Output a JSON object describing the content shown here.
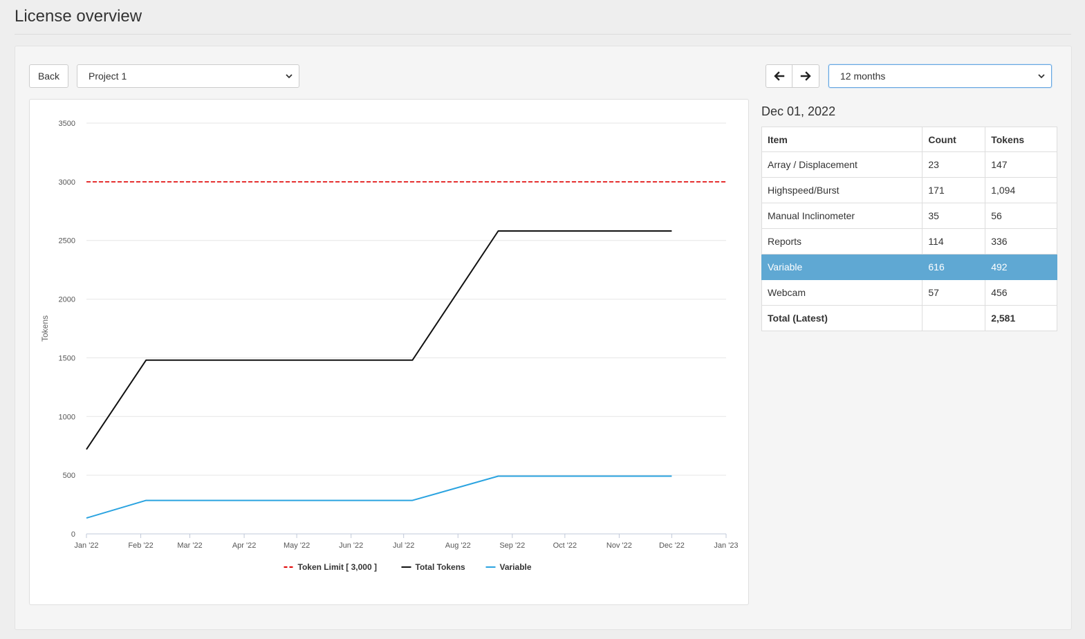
{
  "page": {
    "title": "License overview"
  },
  "toolbar": {
    "back_label": "Back",
    "project_select": {
      "value": "Project 1"
    },
    "prev_icon": "arrow-left-icon",
    "next_icon": "arrow-right-icon",
    "range_select": {
      "value": "12 months"
    }
  },
  "detail": {
    "date": "Dec 01, 2022",
    "columns": [
      "Item",
      "Count",
      "Tokens"
    ],
    "rows": [
      {
        "item": "Array / Displacement",
        "count": "23",
        "tokens": "147"
      },
      {
        "item": "Highspeed/Burst",
        "count": "171",
        "tokens": "1,094"
      },
      {
        "item": "Manual Inclinometer",
        "count": "35",
        "tokens": "56"
      },
      {
        "item": "Reports",
        "count": "114",
        "tokens": "336"
      },
      {
        "item": "Variable",
        "count": "616",
        "tokens": "492",
        "selected": true
      },
      {
        "item": "Webcam",
        "count": "57",
        "tokens": "456"
      }
    ],
    "total": {
      "label": "Total (Latest)",
      "count": "",
      "tokens": "2,581"
    },
    "selected_color": "#5fa8d3"
  },
  "chart_data": {
    "type": "line",
    "ylabel": "Tokens",
    "xlabel": "",
    "ylim": [
      0,
      3500
    ],
    "yticks": [
      0,
      500,
      1000,
      1500,
      2000,
      2500,
      3000,
      3500
    ],
    "xlim": [
      "2022-01-01",
      "2023-01-01"
    ],
    "xticks": [
      "Jan '22",
      "Feb '22",
      "Mar '22",
      "Apr '22",
      "May '22",
      "Jun '22",
      "Jul '22",
      "Aug '22",
      "Sep '22",
      "Oct '22",
      "Nov '22",
      "Dec '22",
      "Jan '23"
    ],
    "xtick_dates": [
      "2022-01-01",
      "2022-02-01",
      "2022-03-01",
      "2022-04-01",
      "2022-05-01",
      "2022-06-01",
      "2022-07-01",
      "2022-08-01",
      "2022-09-01",
      "2022-10-01",
      "2022-11-01",
      "2022-12-01",
      "2023-01-01"
    ],
    "grid": true,
    "legend": "bottom-center",
    "series": [
      {
        "name": "Token Limit [ 3,000 ]",
        "color": "#e00000",
        "dash": true,
        "points": [
          [
            "2022-01-01",
            3000
          ],
          [
            "2023-01-01",
            3000
          ]
        ]
      },
      {
        "name": "Total Tokens",
        "color": "#111111",
        "dash": false,
        "points": [
          [
            "2022-01-01",
            720
          ],
          [
            "2022-02-04",
            1480
          ],
          [
            "2022-07-06",
            1480
          ],
          [
            "2022-08-24",
            2581
          ],
          [
            "2022-12-01",
            2581
          ]
        ]
      },
      {
        "name": "Variable",
        "color": "#2aa3e0",
        "dash": false,
        "points": [
          [
            "2022-01-01",
            135
          ],
          [
            "2022-02-04",
            285
          ],
          [
            "2022-07-06",
            285
          ],
          [
            "2022-08-24",
            492
          ],
          [
            "2022-12-01",
            492
          ]
        ]
      }
    ]
  }
}
